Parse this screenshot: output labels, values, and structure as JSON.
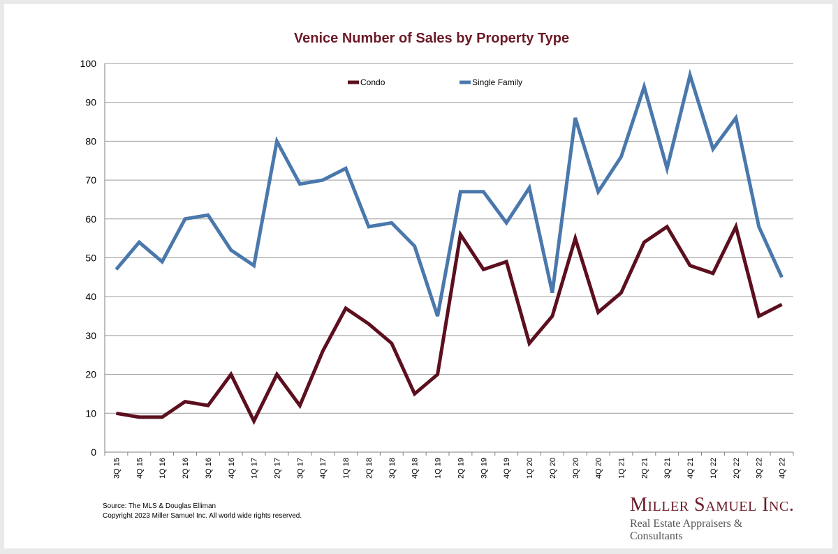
{
  "chart_data": {
    "type": "line",
    "title": "Venice Number of Sales by Property Type",
    "xlabel": "",
    "ylabel": "",
    "ylim": [
      0,
      100
    ],
    "yticks": [
      0,
      10,
      20,
      30,
      40,
      50,
      60,
      70,
      80,
      90,
      100
    ],
    "grid": true,
    "legend_position": "top",
    "categories": [
      "3Q 15",
      "4Q 15",
      "1Q 16",
      "2Q 16",
      "3Q 16",
      "4Q 16",
      "1Q 17",
      "2Q 17",
      "3Q 17",
      "4Q 17",
      "1Q 18",
      "2Q 18",
      "3Q 18",
      "4Q 18",
      "1Q 19",
      "2Q 19",
      "3Q 19",
      "4Q 19",
      "1Q 20",
      "2Q 20",
      "3Q 20",
      "4Q 20",
      "1Q 21",
      "2Q 21",
      "3Q 21",
      "4Q 21",
      "1Q 22",
      "2Q 22",
      "3Q 22",
      "4Q 22"
    ],
    "series": [
      {
        "name": "Condo",
        "color": "#5c0f1e",
        "values": [
          10,
          9,
          9,
          13,
          12,
          20,
          8,
          20,
          12,
          26,
          37,
          33,
          28,
          15,
          20,
          56,
          47,
          49,
          28,
          35,
          55,
          36,
          41,
          54,
          58,
          48,
          46,
          58,
          35,
          38
        ]
      },
      {
        "name": "Single Family",
        "color": "#4a78ac",
        "values": [
          47,
          54,
          49,
          60,
          61,
          52,
          48,
          80,
          69,
          70,
          73,
          58,
          59,
          53,
          35,
          67,
          67,
          59,
          68,
          41,
          86,
          67,
          76,
          94,
          73,
          97,
          78,
          86,
          58,
          45
        ]
      }
    ]
  },
  "footer": {
    "source": "Source: The MLS & Douglas Elliman",
    "copyright": "Copyright 2023 Miller Samuel Inc.  All world wide rights reserved."
  },
  "brand": {
    "name": "Miller Samuel Inc.",
    "tagline": "Real Estate Appraisers & Consultants"
  }
}
